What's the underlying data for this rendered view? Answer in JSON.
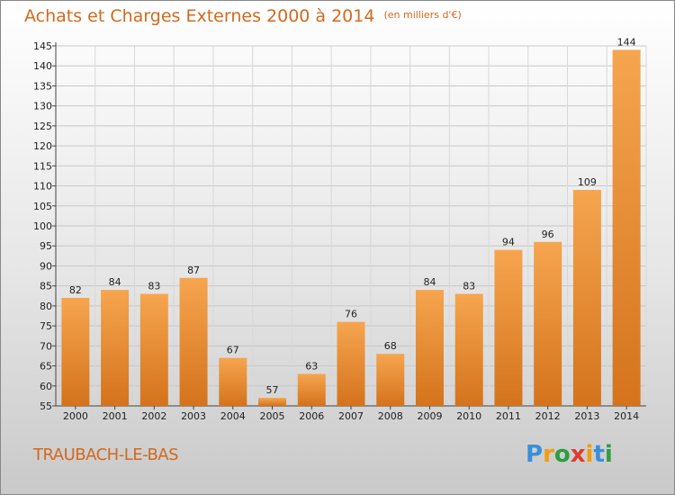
{
  "title": "Achats et Charges Externes 2000 à 2014",
  "unit": "(en milliers d'€)",
  "city": "TRAUBACH-LE-BAS",
  "logo": [
    "P",
    "r",
    "o",
    "x",
    "i",
    "t",
    "i"
  ],
  "colors": {
    "title": "#d2691e",
    "bar_light": "#f6a54f",
    "bar_dark": "#d4731c",
    "logo": [
      "#3a8fd8",
      "#f39c12",
      "#2e9e3e",
      "#e03a2e",
      "#f39c12",
      "#3a8fd8",
      "#2e9e3e"
    ]
  },
  "chart_data": {
    "type": "bar",
    "title": "Achats et Charges Externes 2000 à 2014",
    "categories": [
      "2000",
      "2001",
      "2002",
      "2003",
      "2004",
      "2005",
      "2006",
      "2007",
      "2008",
      "2009",
      "2010",
      "2011",
      "2012",
      "2013",
      "2014"
    ],
    "values": [
      82,
      84,
      83,
      87,
      67,
      57,
      63,
      76,
      68,
      84,
      83,
      94,
      96,
      109,
      144
    ],
    "ylim": [
      55,
      145
    ],
    "yticks": [
      55,
      60,
      65,
      70,
      75,
      80,
      85,
      90,
      95,
      100,
      105,
      110,
      115,
      120,
      125,
      130,
      135,
      140,
      145
    ],
    "grid": true,
    "xlabel": "",
    "ylabel": ""
  }
}
